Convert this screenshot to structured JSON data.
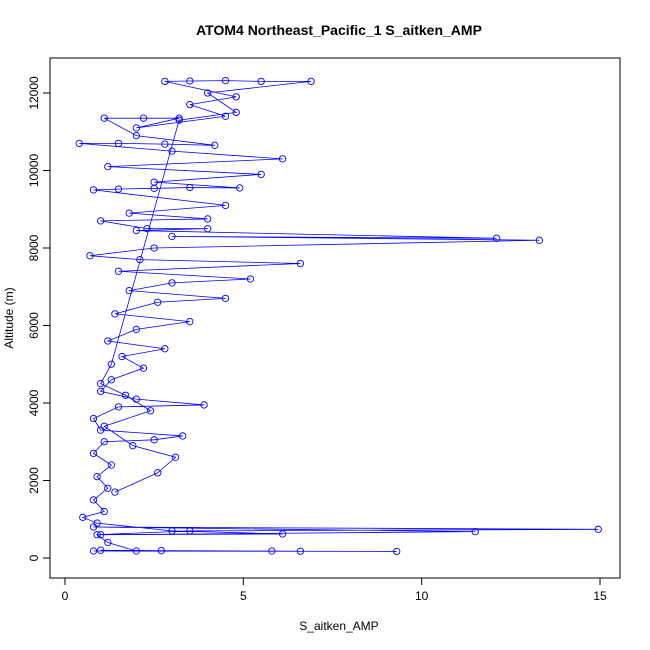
{
  "chart_data": {
    "type": "scatter",
    "title": "ATOM4 Northeast_Pacific_1 S_aitken_AMP",
    "x_label": "S_aitken_AMP",
    "y_label": "Altitude (m)",
    "color": "#0000ff",
    "xlim": [
      -0.42,
      15.56
    ],
    "ylim": [
      -516,
      12903
    ],
    "xticks": [
      0,
      5,
      10,
      15
    ],
    "yticks": [
      0,
      2000,
      4000,
      6000,
      8000,
      10000,
      12000
    ],
    "x": [
      0.8,
      9.3,
      6.6,
      5.8,
      2.7,
      1.0,
      2.0,
      1.2,
      0.9,
      3.5,
      14.95,
      0.8,
      11.5,
      1.0,
      6.1,
      3.0,
      0.9,
      0.5,
      1.1,
      0.8,
      1.2,
      0.9,
      1.3,
      0.8,
      1.1,
      2.5,
      3.3,
      1.0,
      0.8,
      1.5,
      3.9,
      2.0,
      1.0,
      1.3,
      2.2,
      1.6,
      2.8,
      1.2,
      2.0,
      3.5,
      1.4,
      2.6,
      4.5,
      1.8,
      3.0,
      5.2,
      1.5,
      6.6,
      2.1,
      0.7,
      2.5,
      13.3,
      3.0,
      12.1,
      2.0,
      4.0,
      2.3,
      1.0,
      4.0,
      1.8,
      4.5,
      0.8,
      1.5,
      2.5,
      3.5,
      4.9,
      2.5,
      5.5,
      1.2,
      6.1,
      3.0,
      0.4,
      1.5,
      2.8,
      4.2,
      2.0,
      1.1,
      2.2,
      3.2,
      2.0,
      4.5,
      3.5,
      4.8,
      2.8,
      3.5,
      4.5,
      5.5,
      6.9,
      4.0,
      4.8,
      3.2,
      1.3,
      1.0,
      1.7,
      2.4,
      1.1,
      1.9,
      3.1,
      2.6,
      1.4
    ],
    "values": [
      180,
      170,
      175,
      180,
      190,
      200,
      180,
      400,
      600,
      700,
      740,
      800,
      680,
      600,
      620,
      700,
      900,
      1050,
      1200,
      1500,
      1800,
      2100,
      2400,
      2700,
      3000,
      3050,
      3150,
      3300,
      3600,
      3900,
      3950,
      4100,
      4300,
      4600,
      4900,
      5200,
      5400,
      5600,
      5900,
      6100,
      6300,
      6600,
      6700,
      6900,
      7100,
      7200,
      7400,
      7600,
      7700,
      7800,
      8000,
      8200,
      8300,
      8250,
      8450,
      8500,
      8500,
      8700,
      8750,
      8900,
      9100,
      9500,
      9520,
      9540,
      9560,
      9550,
      9700,
      9900,
      10100,
      10300,
      10500,
      10700,
      10700,
      10680,
      10650,
      10900,
      11350,
      11350,
      11350,
      11100,
      11400,
      11700,
      11900,
      12300,
      12310,
      12320,
      12300,
      12300,
      12000,
      11500,
      11300,
      5000,
      4500,
      4200,
      3800,
      3400,
      2900,
      2600,
      2200,
      1700
    ]
  }
}
